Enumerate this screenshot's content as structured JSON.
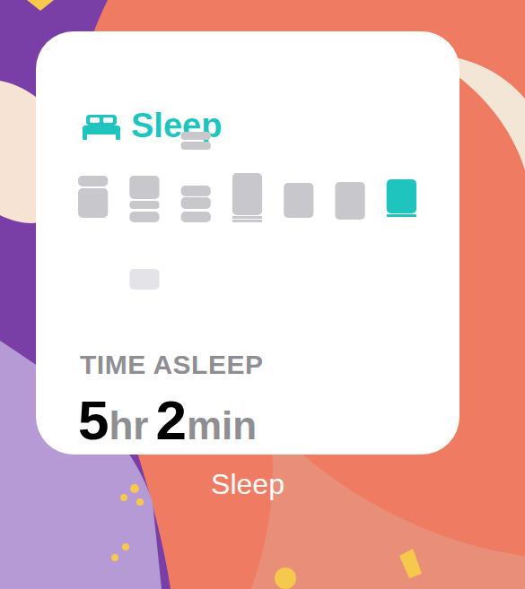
{
  "widget": {
    "title": "Sleep",
    "app_label": "Sleep"
  },
  "summary": {
    "label": "TIME ASLEEP",
    "hours": 5,
    "hours_unit": "hr",
    "minutes": 2,
    "minutes_unit": "min"
  },
  "chart_data": {
    "type": "range_bar",
    "categories": [
      null,
      null,
      null,
      null,
      null,
      null,
      null
    ],
    "segments": [
      [
        {
          "low": 122,
          "high": 134,
          "color": "#c7c7cc"
        },
        {
          "low": 87,
          "high": 120,
          "color": "#c7c7cc"
        }
      ],
      [
        {
          "low": 108,
          "high": 134,
          "color": "#c7c7cc"
        },
        {
          "low": 97,
          "high": 106,
          "color": "#c7c7cc"
        },
        {
          "low": 82,
          "high": 94,
          "color": "#c7c7cc"
        },
        {
          "low": 7,
          "high": 30,
          "color": "#e3e3e8"
        }
      ],
      [
        {
          "low": 174,
          "high": 183,
          "color": "#c7c7cc"
        },
        {
          "low": 163,
          "high": 172,
          "color": "#c7c7cc"
        },
        {
          "low": 111,
          "high": 123,
          "color": "#c7c7cc"
        },
        {
          "low": 97,
          "high": 110,
          "color": "#c7c7cc"
        },
        {
          "low": 82,
          "high": 94,
          "color": "#c7c7cc"
        }
      ],
      [
        {
          "low": 90,
          "high": 137,
          "color": "#c7c7cc"
        },
        {
          "low": 86,
          "high": 89,
          "color": "#c7c7cc"
        },
        {
          "low": 82,
          "high": 85,
          "color": "#c7c7cc"
        }
      ],
      [
        {
          "low": 87,
          "high": 126,
          "color": "#c7c7cc"
        }
      ],
      [
        {
          "low": 85,
          "high": 127,
          "color": "#c7c7cc"
        }
      ],
      [
        {
          "low": 92,
          "high": 130,
          "color": "#1ec4bd"
        },
        {
          "low": 88,
          "high": 91,
          "color": "#1ec4bd"
        }
      ]
    ],
    "ylim": [
      0,
      190
    ],
    "tick_labels": false,
    "grid": false
  }
}
